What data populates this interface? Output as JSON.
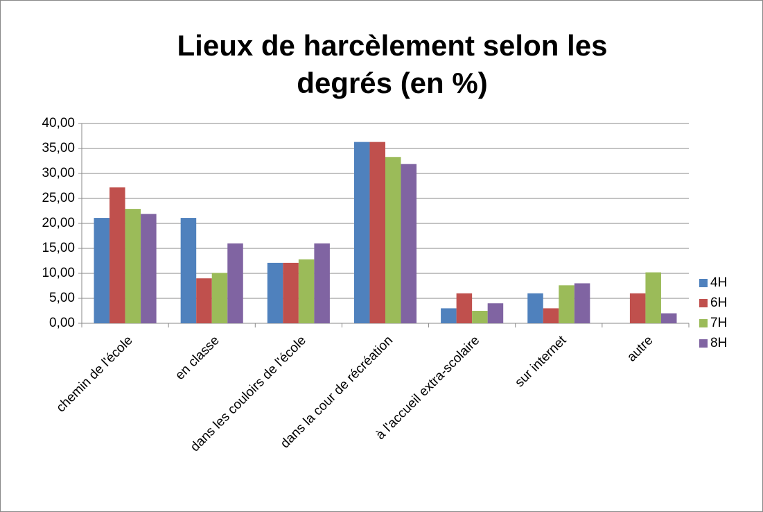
{
  "chart_data": {
    "type": "bar",
    "title": "Lieux de harcèlement selon les degrés (en %)",
    "categories": [
      "chemin de l'école",
      "en classe",
      "dans les couloirs de l'école",
      "dans la cour de récréation",
      "à l'accueil extra-scolaire",
      "sur internet",
      "autre"
    ],
    "series": [
      {
        "name": "4H",
        "color": "#4f81bd",
        "values": [
          21.1,
          21.1,
          12.1,
          36.3,
          3.0,
          6.0,
          0
        ]
      },
      {
        "name": "6H",
        "color": "#c0504d",
        "values": [
          27.2,
          9.0,
          12.1,
          36.3,
          6.0,
          3.0,
          6.0
        ]
      },
      {
        "name": "7H",
        "color": "#9bbb59",
        "values": [
          22.9,
          10.1,
          12.8,
          33.3,
          2.5,
          7.6,
          10.2
        ]
      },
      {
        "name": "8H",
        "color": "#8064a2",
        "values": [
          21.9,
          16.0,
          16.0,
          31.9,
          4.0,
          8.0,
          2.0
        ]
      }
    ],
    "ylim": [
      0,
      40
    ],
    "yticks": [
      {
        "value": 0,
        "label": "0,00"
      },
      {
        "value": 5,
        "label": "5,00"
      },
      {
        "value": 10,
        "label": "10,00"
      },
      {
        "value": 15,
        "label": "15,00"
      },
      {
        "value": 20,
        "label": "20,00"
      },
      {
        "value": 25,
        "label": "25,00"
      },
      {
        "value": 30,
        "label": "30,00"
      },
      {
        "value": 35,
        "label": "35,00"
      },
      {
        "value": 40,
        "label": "40,00"
      }
    ],
    "grid": true,
    "legend": "right"
  }
}
